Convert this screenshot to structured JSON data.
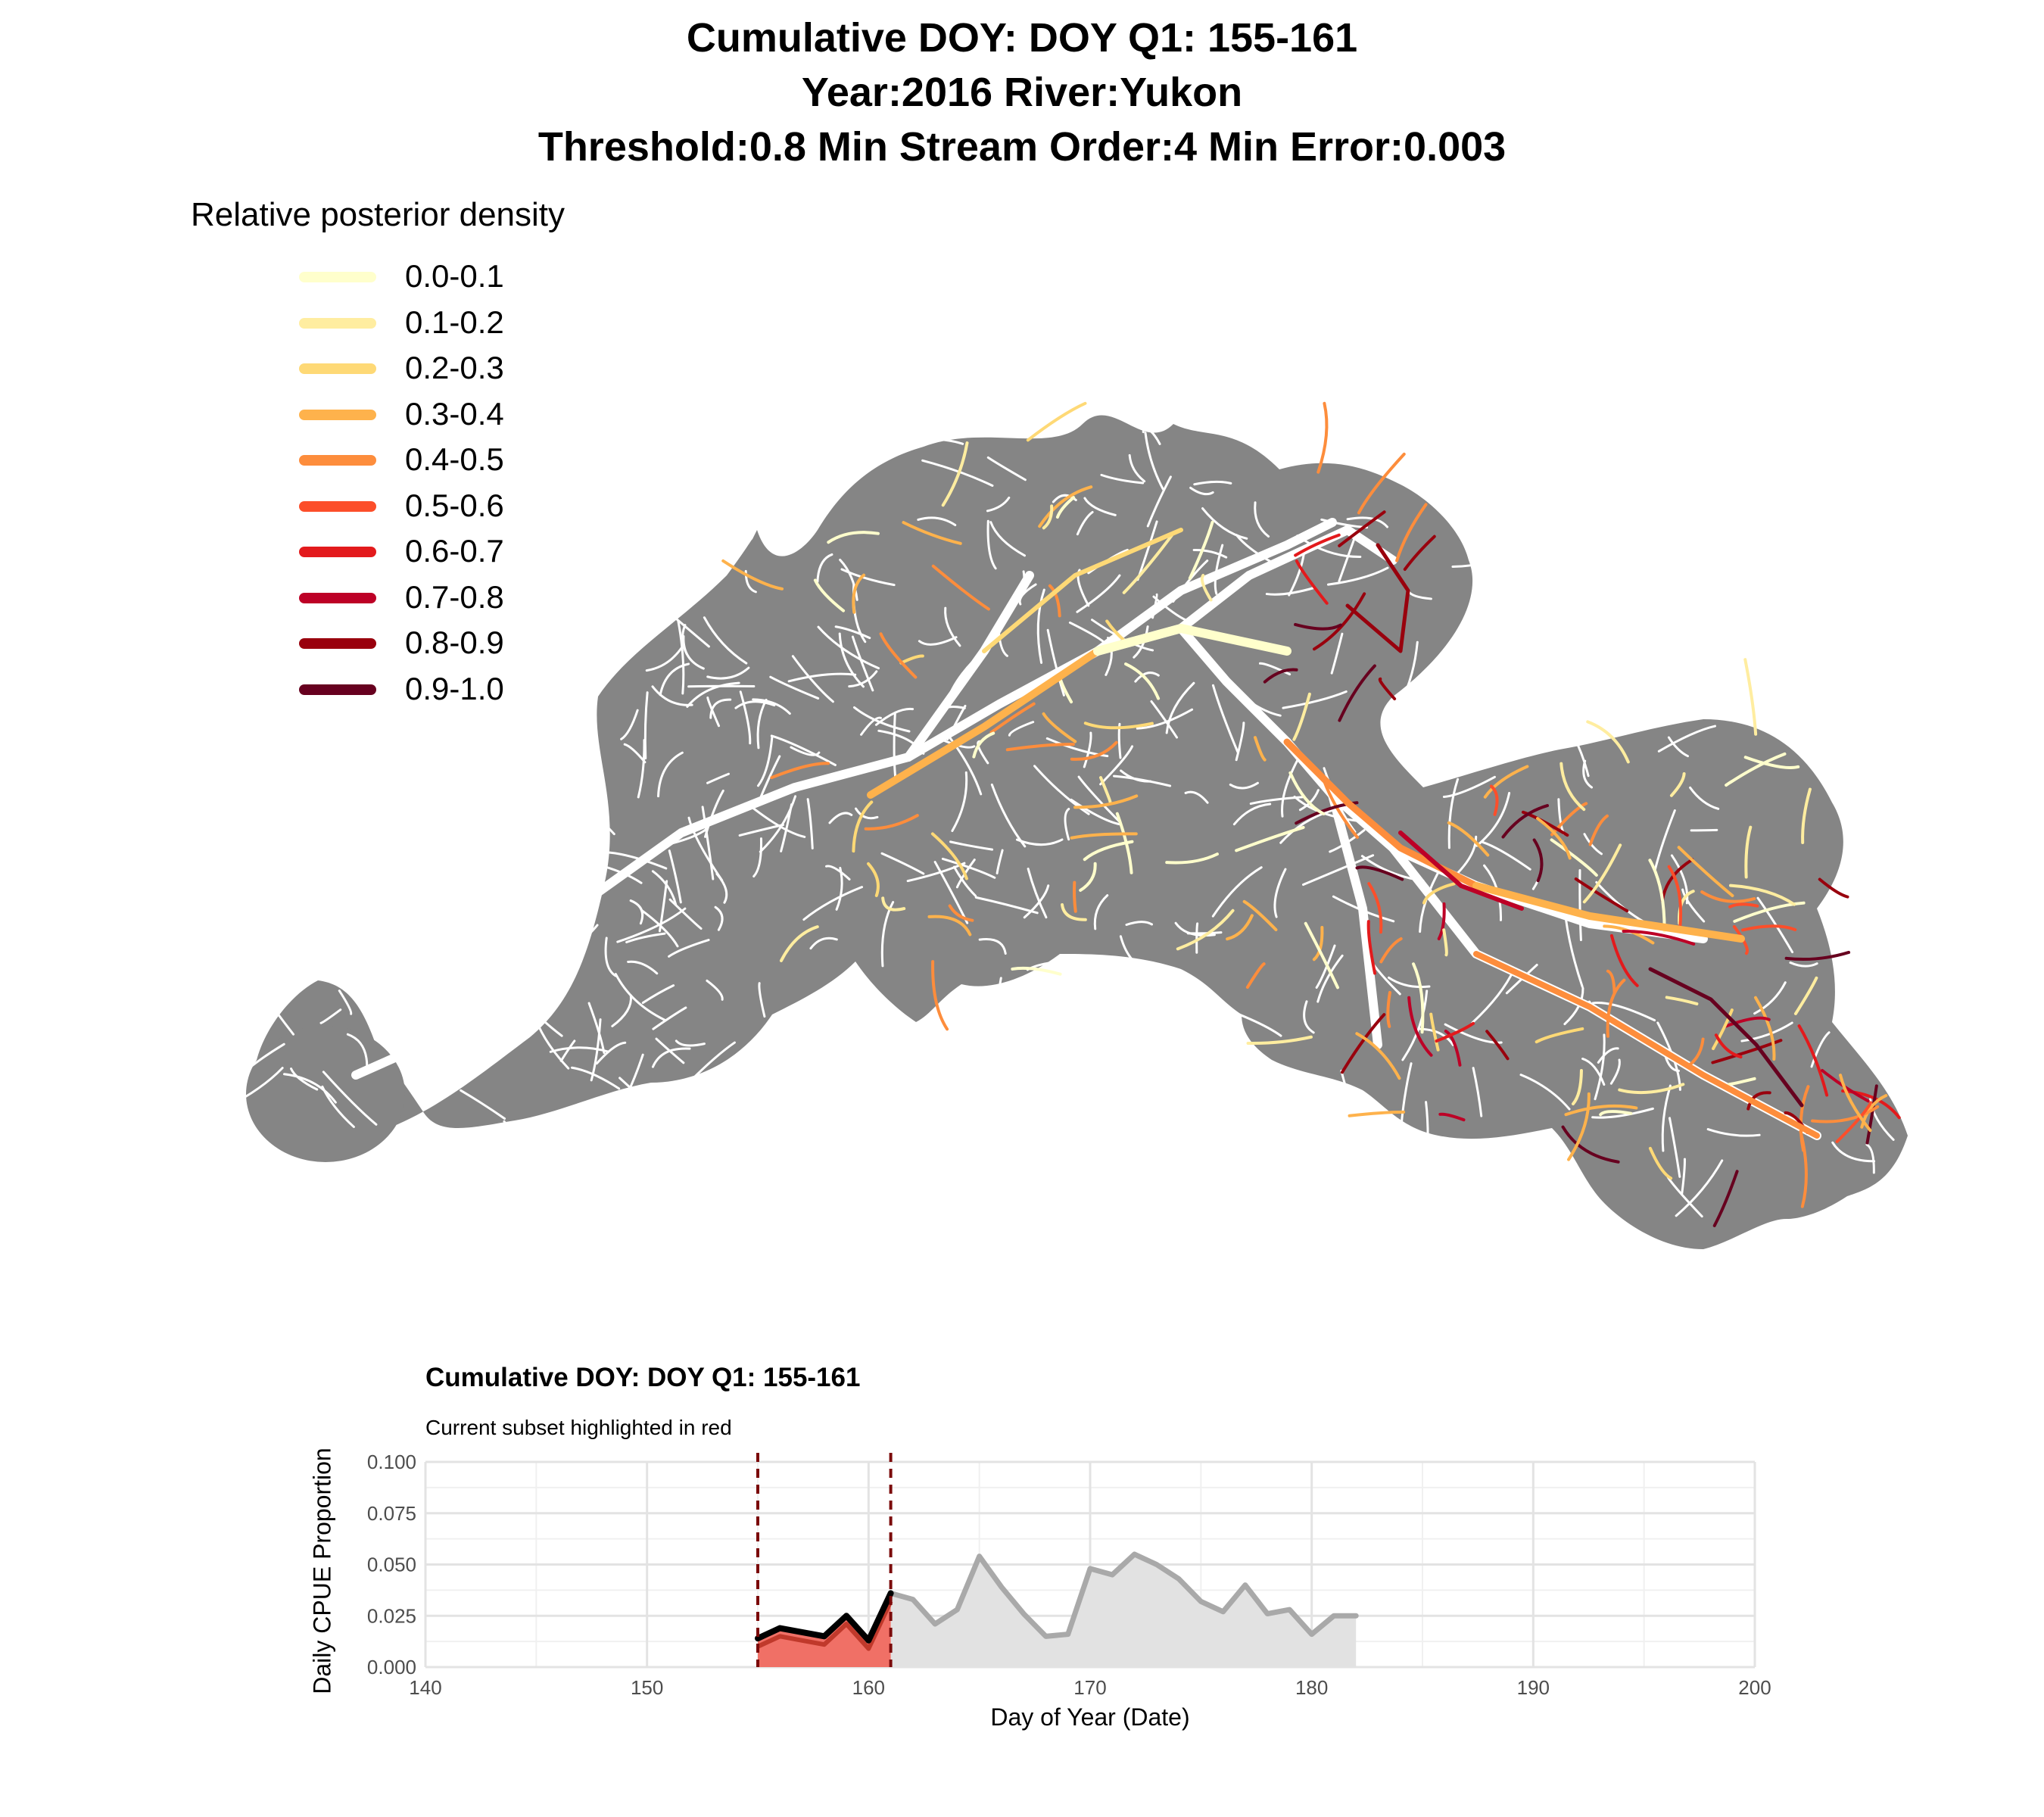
{
  "map": {
    "title_lines": [
      "Cumulative DOY: DOY Q1: 155-161",
      "Year:2016 River:Yukon",
      "Threshold:0.8 Min Stream Order:4 Min Error:0.003"
    ],
    "legend": {
      "title": "Relative posterior density",
      "items": [
        {
          "label": "0.0-0.1",
          "color": "#ffffcc"
        },
        {
          "label": "0.1-0.2",
          "color": "#ffeda0"
        },
        {
          "label": "0.2-0.3",
          "color": "#fed976"
        },
        {
          "label": "0.3-0.4",
          "color": "#feb24c"
        },
        {
          "label": "0.4-0.5",
          "color": "#fd8d3c"
        },
        {
          "label": "0.5-0.6",
          "color": "#fc4e2a"
        },
        {
          "label": "0.6-0.7",
          "color": "#e31a1c"
        },
        {
          "label": "0.7-0.8",
          "color": "#bd0026"
        },
        {
          "label": "0.8-0.9",
          "color": "#99000d"
        },
        {
          "label": "0.9-1.0",
          "color": "#67001f"
        }
      ]
    },
    "basin_color": "#858585",
    "stream_color": "#ffffff"
  },
  "chart_data": {
    "type": "area",
    "title": "Cumulative DOY: DOY Q1: 155-161",
    "subtitle": "Current subset highlighted in red",
    "xlabel": "Day of Year (Date)",
    "ylabel": "Daily CPUE Proportion",
    "xlim": [
      140,
      200
    ],
    "ylim": [
      0,
      0.1
    ],
    "x_ticks": [
      140,
      150,
      160,
      170,
      180,
      190,
      200
    ],
    "y_ticks": [
      0.0,
      0.025,
      0.05,
      0.075,
      0.1
    ],
    "y_tick_labels": [
      "0.000",
      "0.025",
      "0.050",
      "0.075",
      "0.100"
    ],
    "grid": true,
    "highlight_range": [
      155,
      161
    ],
    "colors": {
      "highlight_fill": "#f07066",
      "highlight_line": "#000000",
      "rest_fill": "#e2e2e2",
      "rest_line": "#a9a9a9",
      "vline": "#7b0a0a"
    },
    "series": [
      {
        "x": [
          155,
          156,
          157,
          158,
          159,
          160,
          161,
          162,
          163,
          164,
          165,
          166,
          167,
          168,
          169,
          170,
          171,
          172,
          173,
          174,
          175,
          176,
          177,
          178,
          179,
          180,
          181,
          182
        ],
        "values": [
          0.014,
          0.019,
          0.017,
          0.015,
          0.025,
          0.013,
          0.036,
          0.033,
          0.021,
          0.028,
          0.054,
          0.039,
          0.026,
          0.015,
          0.016,
          0.048,
          0.045,
          0.055,
          0.05,
          0.043,
          0.032,
          0.027,
          0.04,
          0.026,
          0.028,
          0.016,
          0.025,
          0.025
        ]
      }
    ]
  }
}
